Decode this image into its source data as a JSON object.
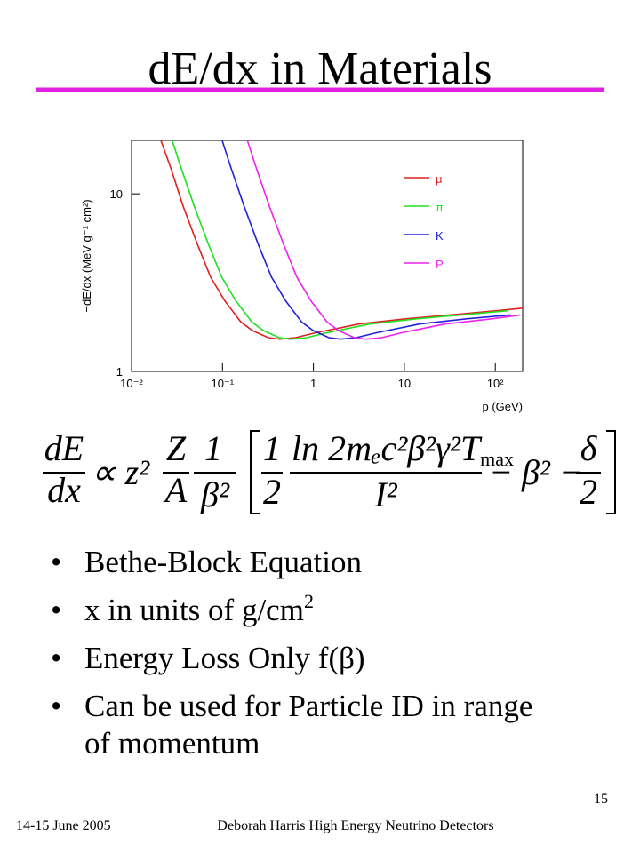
{
  "title": "dE/dx in Materials",
  "chart": {
    "type": "line",
    "y_label": "−dE/dx (MeV g⁻¹ cm²)",
    "x_label": "p (GeV)",
    "log_x": true,
    "log_y": true,
    "xlim": [
      0.01,
      200
    ],
    "ylim": [
      1,
      20
    ],
    "xticks": [
      {
        "value": 0.01,
        "label": "10⁻²"
      },
      {
        "value": 0.1,
        "label": "10⁻¹"
      },
      1,
      10,
      {
        "value": 100,
        "label": "10²"
      }
    ],
    "yticks": [
      1,
      10
    ],
    "series": [
      {
        "name": "μ",
        "color": "#e02020",
        "x": [
          0.021,
          0.027,
          0.037,
          0.053,
          0.074,
          0.106,
          0.159,
          0.212,
          0.318,
          0.424,
          0.636,
          1.06,
          3.18,
          10.6,
          31.8,
          106,
          212
        ],
        "values": [
          20,
          14,
          8.5,
          5.2,
          3.4,
          2.5,
          1.9,
          1.7,
          1.55,
          1.52,
          1.55,
          1.65,
          1.85,
          1.98,
          2.08,
          2.2,
          2.28
        ]
      },
      {
        "name": "π",
        "color": "#20e020",
        "x": [
          0.028,
          0.035,
          0.049,
          0.07,
          0.098,
          0.14,
          0.21,
          0.28,
          0.42,
          0.56,
          0.84,
          1.4,
          4.2,
          14,
          42,
          140
        ],
        "values": [
          20,
          14,
          8.5,
          5.2,
          3.4,
          2.5,
          1.9,
          1.7,
          1.55,
          1.52,
          1.55,
          1.65,
          1.85,
          1.98,
          2.08,
          2.2
        ]
      },
      {
        "name": "K",
        "color": "#2020e0",
        "x": [
          0.099,
          0.124,
          0.173,
          0.247,
          0.346,
          0.494,
          0.741,
          0.988,
          1.48,
          1.98,
          2.96,
          4.94,
          14.8,
          49.4,
          148
        ],
        "values": [
          20,
          14,
          8.5,
          5.2,
          3.4,
          2.5,
          1.9,
          1.7,
          1.55,
          1.52,
          1.55,
          1.65,
          1.85,
          1.98,
          2.08
        ]
      },
      {
        "name": "P",
        "color": "#ee22ee",
        "x": [
          0.188,
          0.235,
          0.328,
          0.469,
          0.657,
          0.938,
          1.41,
          1.88,
          2.81,
          3.75,
          5.63,
          9.38,
          28.1,
          93.8,
          188
        ],
        "values": [
          20,
          14,
          8.5,
          5.2,
          3.4,
          2.5,
          1.9,
          1.7,
          1.55,
          1.52,
          1.55,
          1.65,
          1.85,
          1.98,
          2.08
        ]
      }
    ]
  },
  "equation": {
    "lhs_num": "dE",
    "lhs_den": "dx",
    "prop": "∝ z²",
    "z_num": "Z",
    "z_den": "A",
    "b_num": "1",
    "b_den": "β²",
    "h_num": "1",
    "h_den": "2",
    "log_num": "ln 2mₑc²β²γ²T",
    "log_sub": "max",
    "log_den": "I²",
    "minus": "− β² −",
    "d_num": "δ",
    "d_den": "2"
  },
  "bullets": [
    "Bethe-Block Equation",
    "x in units of g/cm",
    "Energy Loss Only f(β)",
    "Can be used for Particle ID in range of momentum"
  ],
  "bullet_sup": "2",
  "footer": {
    "date": "14-15 June 2005",
    "author": "Deborah Harris  High Energy Neutrino Detectors",
    "page": "15"
  }
}
